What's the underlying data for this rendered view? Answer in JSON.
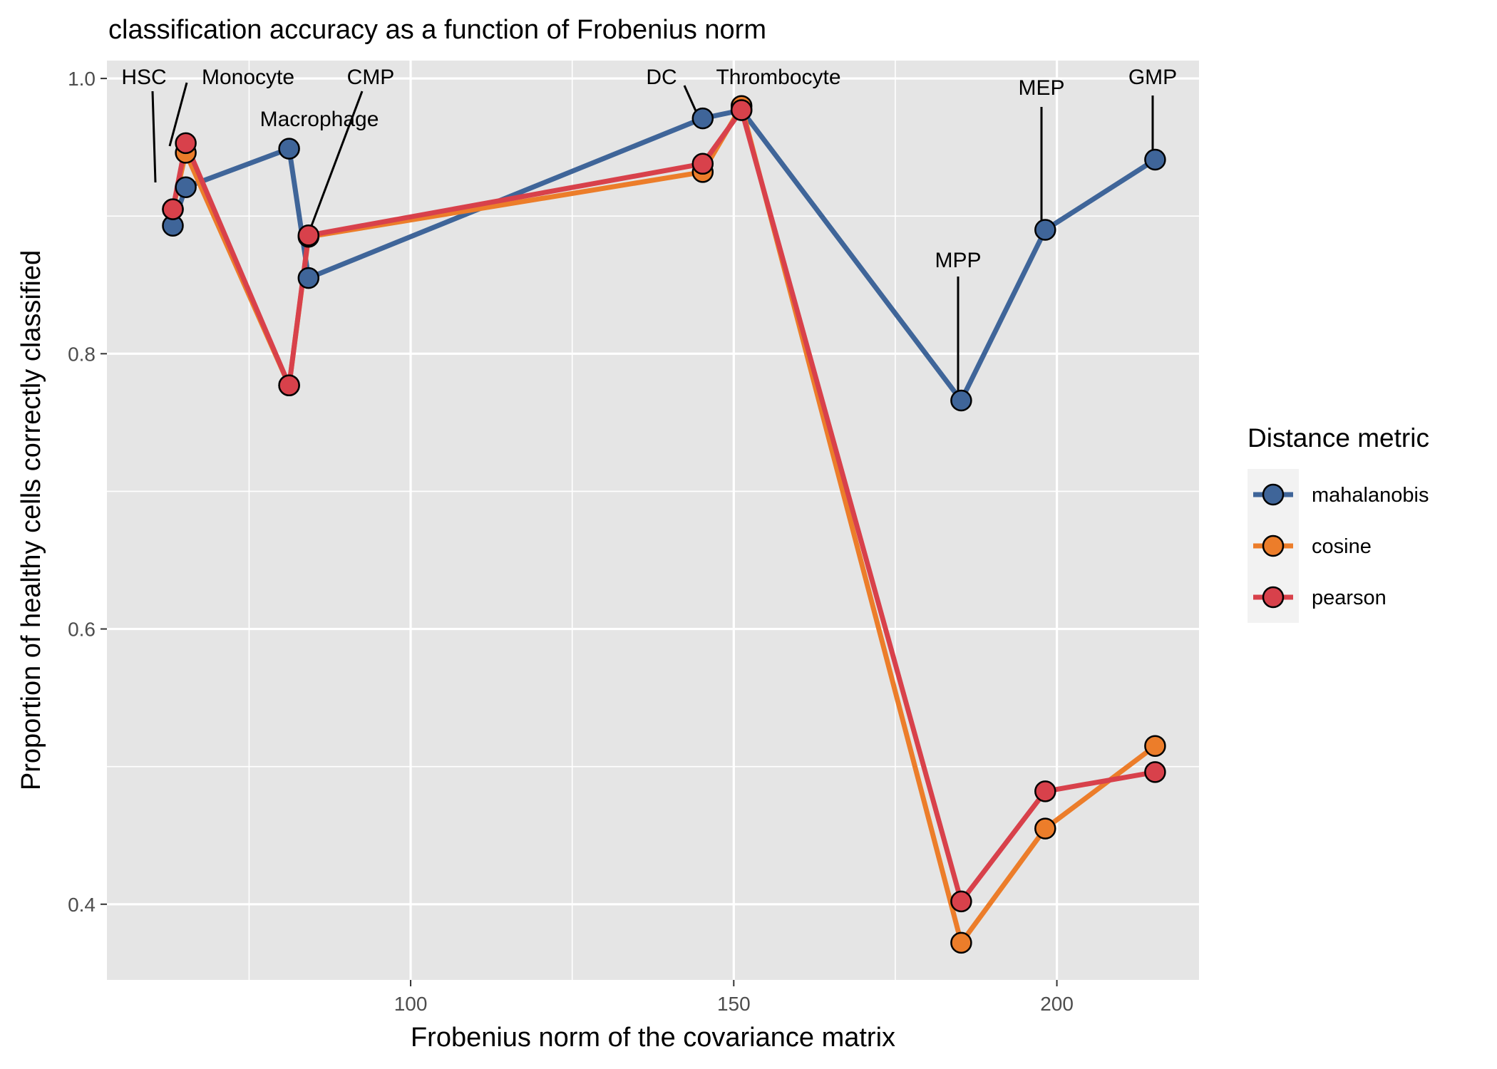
{
  "chart_data": {
    "type": "line",
    "title": "classification accuracy as a function of Frobenius norm",
    "xlabel": "Frobenius norm of the covariance matrix",
    "ylabel": "Proportion of healthy cells correctly classified",
    "xlim": [
      53,
      222
    ],
    "ylim": [
      0.345,
      1.013
    ],
    "xticks": [
      100,
      150,
      200
    ],
    "xtick_labels": [
      "100",
      "150",
      "200"
    ],
    "xminor": [
      75,
      125,
      175
    ],
    "yticks": [
      0.4,
      0.6,
      0.8,
      1.0
    ],
    "ytick_labels": [
      "0.4",
      "0.6",
      "0.8",
      "1.0"
    ],
    "yminor": [
      0.5,
      0.7,
      0.9
    ],
    "grid": true,
    "legend": {
      "title": "Distance metric",
      "position": "right"
    },
    "series": [
      {
        "name": "mahalanobis",
        "color": "#3f6599",
        "points": [
          {
            "x": 63.2,
            "y": 0.893
          },
          {
            "x": 65.2,
            "y": 0.921
          },
          {
            "x": 81.2,
            "y": 0.949
          },
          {
            "x": 84.2,
            "y": 0.855
          },
          {
            "x": 145.2,
            "y": 0.971
          },
          {
            "x": 151.2,
            "y": 0.977
          },
          {
            "x": 185.2,
            "y": 0.766
          },
          {
            "x": 198.2,
            "y": 0.89
          },
          {
            "x": 215.2,
            "y": 0.941
          }
        ]
      },
      {
        "name": "cosine",
        "color": "#ec7d2a",
        "points": [
          {
            "x": 63.2,
            "y": 0.905
          },
          {
            "x": 65.2,
            "y": 0.946
          },
          {
            "x": 81.2,
            "y": 0.777
          },
          {
            "x": 84.2,
            "y": 0.885
          },
          {
            "x": 145.2,
            "y": 0.932
          },
          {
            "x": 151.2,
            "y": 0.98
          },
          {
            "x": 185.2,
            "y": 0.372
          },
          {
            "x": 198.2,
            "y": 0.455
          },
          {
            "x": 215.2,
            "y": 0.515
          }
        ]
      },
      {
        "name": "pearson",
        "color": "#d8414b",
        "points": [
          {
            "x": 63.2,
            "y": 0.905
          },
          {
            "x": 65.2,
            "y": 0.953
          },
          {
            "x": 81.2,
            "y": 0.777
          },
          {
            "x": 84.2,
            "y": 0.886
          },
          {
            "x": 145.2,
            "y": 0.938
          },
          {
            "x": 151.2,
            "y": 0.977
          },
          {
            "x": 185.2,
            "y": 0.402
          },
          {
            "x": 198.2,
            "y": 0.482
          },
          {
            "x": 215.2,
            "y": 0.496
          }
        ]
      }
    ],
    "annotations": [
      {
        "label": "HSC",
        "x": 63.2,
        "y": 0.905
      },
      {
        "label": "Monocyte",
        "x": 65.2,
        "y": 0.953
      },
      {
        "label": "Macrophage",
        "x": 81.2,
        "y": 0.949
      },
      {
        "label": "CMP",
        "x": 84.2,
        "y": 0.886
      },
      {
        "label": "DC",
        "x": 145.2,
        "y": 0.971
      },
      {
        "label": "Thrombocyte",
        "x": 151.2,
        "y": 0.98
      },
      {
        "label": "MPP",
        "x": 185.2,
        "y": 0.766
      },
      {
        "label": "MEP",
        "x": 198.2,
        "y": 0.89
      },
      {
        "label": "GMP",
        "x": 215.2,
        "y": 0.941
      }
    ]
  }
}
